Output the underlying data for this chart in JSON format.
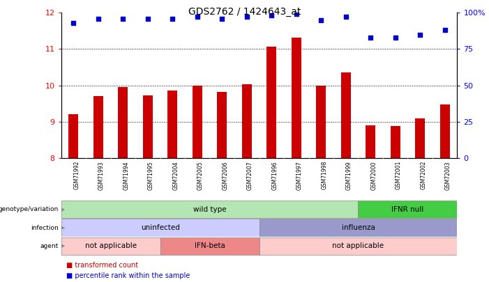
{
  "title": "GDS2762 / 1424643_at",
  "samples": [
    "GSM71992",
    "GSM71993",
    "GSM71994",
    "GSM71995",
    "GSM72004",
    "GSM72005",
    "GSM72006",
    "GSM72007",
    "GSM71996",
    "GSM71997",
    "GSM71998",
    "GSM71999",
    "GSM72000",
    "GSM72001",
    "GSM72002",
    "GSM72003"
  ],
  "bar_values": [
    9.2,
    9.7,
    9.95,
    9.72,
    9.85,
    10.0,
    9.82,
    10.02,
    11.07,
    11.32,
    10.0,
    10.35,
    8.9,
    8.88,
    9.08,
    9.47
  ],
  "percentile_values": [
    93,
    96,
    96,
    96,
    96,
    97,
    96,
    97,
    98,
    99,
    95,
    97,
    83,
    83,
    85,
    88
  ],
  "bar_bottom": 8.0,
  "ylim_left": [
    8.0,
    12.0
  ],
  "ylim_right": [
    0,
    100
  ],
  "yticks_left": [
    8,
    9,
    10,
    11,
    12
  ],
  "yticks_right": [
    0,
    25,
    50,
    75,
    100
  ],
  "ytick_labels_right": [
    "0",
    "25",
    "50",
    "75",
    "100%"
  ],
  "bar_color": "#cc0000",
  "percentile_color": "#0000cc",
  "dot_marker": "s",
  "dot_size": 18,
  "grid_yticks": [
    9,
    10,
    11
  ],
  "grid_color": "black",
  "grid_linewidth": 0.7,
  "annotation_rows": [
    {
      "label": "genotype/variation",
      "segments": [
        {
          "text": "wild type",
          "start": 0,
          "end": 11,
          "color": "#b3e6b3",
          "border": "#888888"
        },
        {
          "text": "IFNR null",
          "start": 12,
          "end": 15,
          "color": "#44cc44",
          "border": "#888888"
        }
      ]
    },
    {
      "label": "infection",
      "segments": [
        {
          "text": "uninfected",
          "start": 0,
          "end": 7,
          "color": "#ccccff",
          "border": "#888888"
        },
        {
          "text": "influenza",
          "start": 8,
          "end": 15,
          "color": "#9999cc",
          "border": "#888888"
        }
      ]
    },
    {
      "label": "agent",
      "segments": [
        {
          "text": "not applicable",
          "start": 0,
          "end": 3,
          "color": "#ffcccc",
          "border": "#888888"
        },
        {
          "text": "IFN-beta",
          "start": 4,
          "end": 7,
          "color": "#ee8888",
          "border": "#888888"
        },
        {
          "text": "not applicable",
          "start": 8,
          "end": 15,
          "color": "#ffcccc",
          "border": "#888888"
        }
      ]
    }
  ],
  "legend_items": [
    {
      "label": "transformed count",
      "color": "#cc0000"
    },
    {
      "label": "percentile rank within the sample",
      "color": "#0000cc"
    }
  ],
  "background_color": "#ffffff",
  "sample_bg_color": "#cccccc",
  "bar_width": 0.4
}
